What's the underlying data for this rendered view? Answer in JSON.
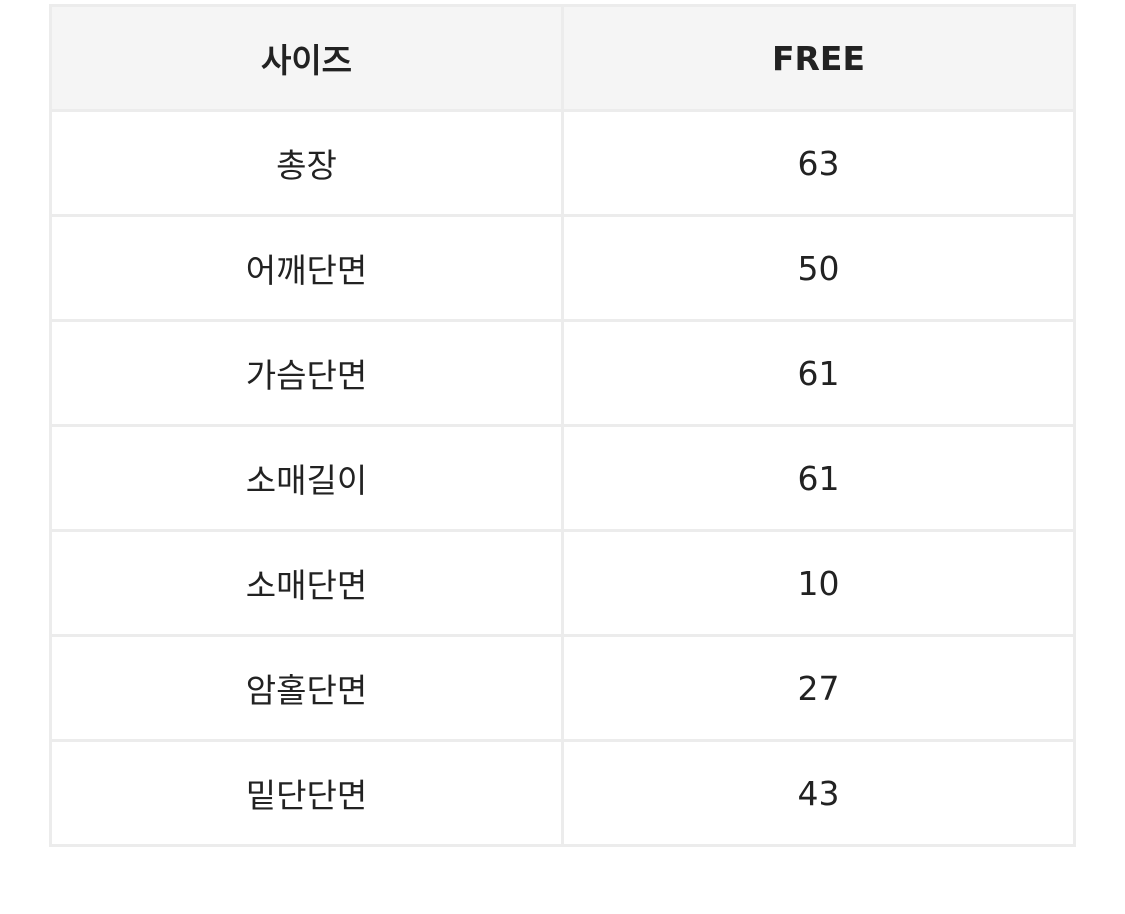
{
  "table": {
    "headers": [
      "사이즈",
      "FREE"
    ],
    "rows": [
      [
        "총장",
        "63"
      ],
      [
        "어깨단면",
        "50"
      ],
      [
        "가슴단면",
        "61"
      ],
      [
        "소매길이",
        "61"
      ],
      [
        "소매단면",
        "10"
      ],
      [
        "암홀단면",
        "27"
      ],
      [
        "밑단단면",
        "43"
      ]
    ]
  }
}
